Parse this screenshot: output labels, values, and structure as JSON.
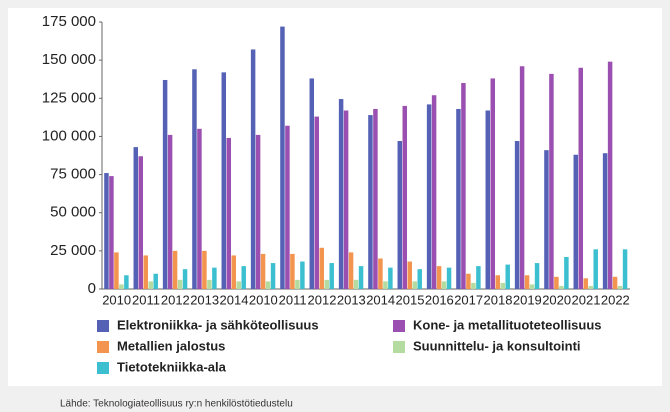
{
  "chart_data": {
    "type": "bar",
    "categories": [
      "2010",
      "2011",
      "2012",
      "2013",
      "2014",
      "2010",
      "2011",
      "2012",
      "2013",
      "2014",
      "2015",
      "2016",
      "2017",
      "2018",
      "2019",
      "2020",
      "2021",
      "2022"
    ],
    "series": [
      {
        "name": "Elektroniikka- ja sähköteollisuus",
        "color": "#5561b4",
        "values": [
          76000,
          93000,
          137000,
          144000,
          142000,
          157000,
          172000,
          138000,
          124500,
          114000,
          97000,
          121000,
          118000,
          117000,
          97000,
          91000,
          88000,
          89000
        ]
      },
      {
        "name": "Kone- ja metallituoteteollisuus",
        "color": "#9b4fb0",
        "values": [
          74000,
          87000,
          101000,
          105000,
          99000,
          101000,
          107000,
          113000,
          117000,
          118000,
          120000,
          127000,
          135000,
          138000,
          146000,
          141000,
          145000,
          149000
        ]
      },
      {
        "name": "Metallien jalostus",
        "color": "#f3944f",
        "values": [
          24000,
          22000,
          25000,
          25000,
          22000,
          23000,
          23000,
          27000,
          24000,
          20000,
          18000,
          15000,
          10000,
          9000,
          9000,
          8000,
          7000,
          8000
        ]
      },
      {
        "name": "Suunnittelu- ja konsultointi",
        "color": "#b5dca0",
        "values": [
          3000,
          5000,
          6000,
          6000,
          5000,
          5000,
          6000,
          6000,
          6000,
          5000,
          5000,
          5000,
          4000,
          4000,
          3000,
          2000,
          2000,
          2000
        ]
      },
      {
        "name": "Tietotekniikka-ala",
        "color": "#3cc0d0",
        "values": [
          9000,
          10000,
          13000,
          14000,
          15000,
          17000,
          18000,
          17000,
          15000,
          14000,
          13000,
          14000,
          15000,
          16000,
          17000,
          21000,
          26000,
          26000
        ]
      }
    ],
    "ylim": [
      0,
      175000
    ],
    "yticks": [
      0,
      {
        "value": 25000,
        "label": "25 000"
      },
      {
        "value": 50000,
        "label": "50 000"
      },
      {
        "value": 75000,
        "label": "75 000"
      },
      {
        "value": 100000,
        "label": "100 000"
      },
      {
        "value": 125000,
        "label": "125 000"
      },
      {
        "value": 150000,
        "label": "150 000"
      },
      {
        "value": 175000,
        "label": "175 000"
      }
    ],
    "grid": false,
    "source": "Lähde: Teknologiateollisuus ry:n henkilöstötiedustelu"
  }
}
